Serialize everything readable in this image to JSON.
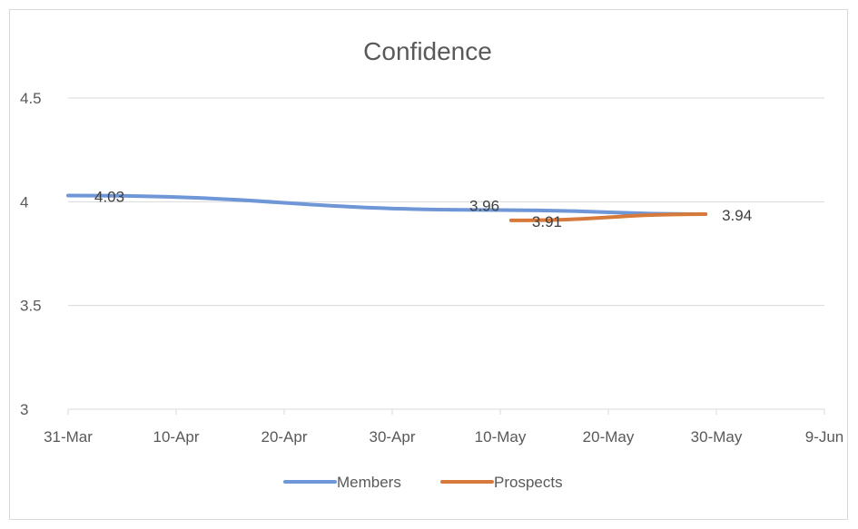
{
  "chart_data": {
    "type": "line",
    "title": "Confidence",
    "xlabel": "",
    "ylabel": "",
    "x_axis": {
      "type": "date",
      "ticks": [
        "31-Mar",
        "10-Apr",
        "20-Apr",
        "30-Apr",
        "10-May",
        "20-May",
        "30-May",
        "9-Jun"
      ],
      "range": [
        "31-Mar",
        "9-Jun"
      ]
    },
    "y_axis": {
      "ticks": [
        "3",
        "3.5",
        "4",
        "4.5"
      ],
      "ylim": [
        3,
        4.5
      ]
    },
    "grid": true,
    "legend": "bottom",
    "series": [
      {
        "name": "Members",
        "color": "#6f96d6",
        "points": [
          {
            "x": "31-Mar",
            "y": 4.03,
            "label": "4.03"
          },
          {
            "x": "10-May",
            "y": 3.96,
            "label": "3.96"
          },
          {
            "x": "29-May",
            "y": 3.94,
            "label": ""
          }
        ]
      },
      {
        "name": "Prospects",
        "color": "#d6793a",
        "points": [
          {
            "x": "11-May",
            "y": 3.91,
            "label": "3.91"
          },
          {
            "x": "29-May",
            "y": 3.94,
            "label": "3.94"
          }
        ]
      }
    ]
  }
}
